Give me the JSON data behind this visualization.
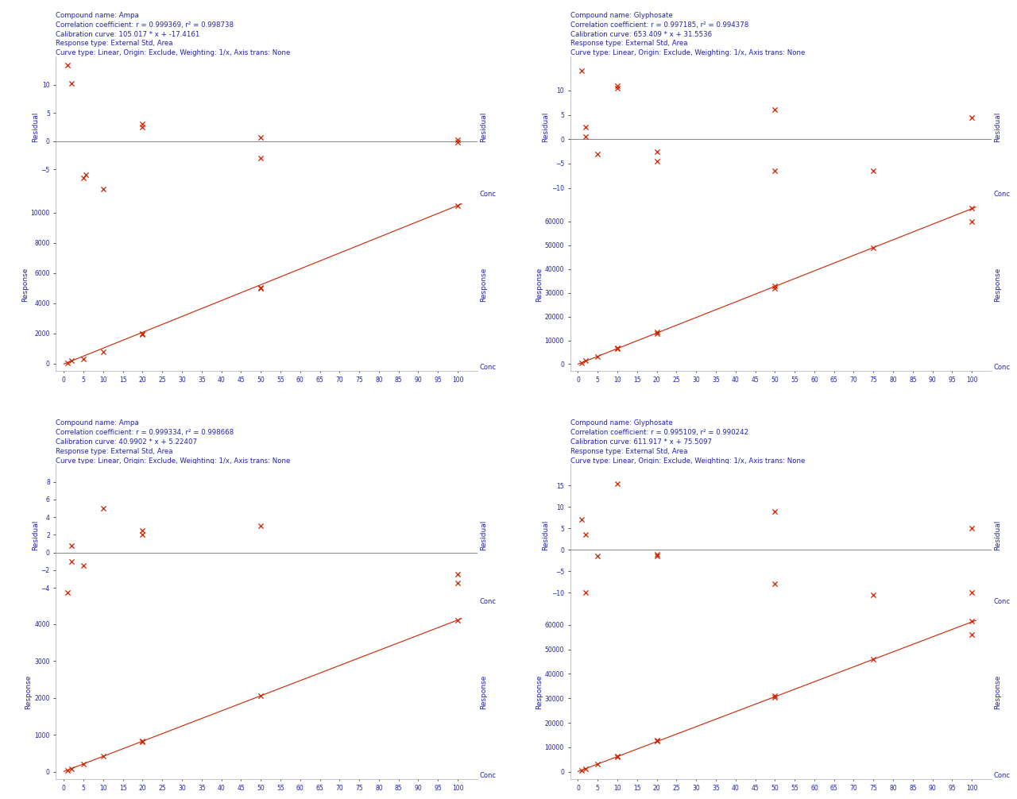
{
  "panels": [
    {
      "title_lines": [
        "Compound name: Ampa",
        "Correlation coefficient: r = 0.999369, r² = 0.998738",
        "Calibration curve: 105.017 * x + -17.4161",
        "Response type: External Std, Area",
        "Curve type: Linear, Origin: Exclude, Weighting: 1/x, Axis trans: None"
      ],
      "slope": 105.017,
      "intercept": -17.4161,
      "residual_points": [
        [
          1,
          13.5
        ],
        [
          2,
          10.2
        ],
        [
          5,
          -6.5
        ],
        [
          5.5,
          -6.0
        ],
        [
          10,
          -8.5
        ],
        [
          20,
          3.0
        ],
        [
          20,
          2.5
        ],
        [
          50,
          -3.0
        ],
        [
          50,
          0.6
        ],
        [
          100,
          0.3
        ],
        [
          100,
          -0.2
        ]
      ],
      "response_points": [
        [
          1,
          75
        ],
        [
          2,
          200
        ],
        [
          5,
          310
        ],
        [
          10,
          790
        ],
        [
          20,
          2020
        ],
        [
          20,
          1950
        ],
        [
          50,
          5050
        ],
        [
          50,
          5000
        ],
        [
          100,
          10450
        ]
      ],
      "residual_ylim": [
        -10,
        15
      ],
      "residual_yticks": [
        -5,
        0,
        5,
        10
      ],
      "response_ylim": [
        -500,
        11000
      ],
      "response_yticks": [
        0,
        2000,
        4000,
        6000,
        8000,
        10000
      ]
    },
    {
      "title_lines": [
        "Compound name: Glyphosate",
        "Correlation coefficient: r = 0.997185, r² = 0.994378",
        "Calibration curve: 653.409 * x + 31.5536",
        "Response type: External Std, Area",
        "Curve type: Linear, Origin: Exclude, Weighting: 1/x, Axis trans: None"
      ],
      "slope": 653.409,
      "intercept": 31.5536,
      "residual_points": [
        [
          1,
          14.0
        ],
        [
          2,
          2.5
        ],
        [
          2,
          0.5
        ],
        [
          5,
          -3.0
        ],
        [
          10,
          11.0
        ],
        [
          10,
          10.5
        ],
        [
          20,
          -2.5
        ],
        [
          20,
          -4.5
        ],
        [
          50,
          6.0
        ],
        [
          50,
          -6.5
        ],
        [
          75,
          -6.5
        ],
        [
          100,
          4.5
        ]
      ],
      "response_points": [
        [
          1,
          500
        ],
        [
          2,
          1400
        ],
        [
          5,
          3300
        ],
        [
          10,
          6500
        ],
        [
          10,
          6800
        ],
        [
          20,
          13000
        ],
        [
          20,
          13500
        ],
        [
          50,
          33000
        ],
        [
          50,
          32000
        ],
        [
          75,
          49000
        ],
        [
          100,
          65500
        ],
        [
          100,
          60000
        ]
      ],
      "residual_ylim": [
        -12,
        17
      ],
      "residual_yticks": [
        -10,
        -5,
        0,
        5,
        10
      ],
      "response_ylim": [
        -3000,
        70000
      ],
      "response_yticks": [
        0,
        10000,
        20000,
        30000,
        40000,
        50000,
        60000
      ]
    },
    {
      "title_lines": [
        "Compound name: Ampa",
        "Correlation coefficient: r = 0.999334, r² = 0.998668",
        "Calibration curve: 40.9902 * x + 5.22407",
        "Response type: External Std, Area",
        "Curve type: Linear, Origin: Exclude, Weighting: 1/x, Axis trans: None"
      ],
      "slope": 40.9902,
      "intercept": 5.22407,
      "residual_points": [
        [
          1,
          -4.5
        ],
        [
          2,
          0.8
        ],
        [
          2,
          -1.0
        ],
        [
          5,
          -1.5
        ],
        [
          10,
          5.0
        ],
        [
          20,
          2.5
        ],
        [
          20,
          2.0
        ],
        [
          50,
          3.0
        ],
        [
          100,
          -2.5
        ],
        [
          100,
          -3.5
        ]
      ],
      "response_points": [
        [
          1,
          40
        ],
        [
          2,
          85
        ],
        [
          5,
          200
        ],
        [
          10,
          420
        ],
        [
          20,
          830
        ],
        [
          20,
          800
        ],
        [
          50,
          2060
        ],
        [
          100,
          4100
        ]
      ],
      "residual_ylim": [
        -6,
        10
      ],
      "residual_yticks": [
        -4,
        -2,
        0,
        2,
        4,
        6,
        8
      ],
      "response_ylim": [
        -200,
        4500
      ],
      "response_yticks": [
        0,
        1000,
        2000,
        3000,
        4000
      ]
    },
    {
      "title_lines": [
        "Compound name: Glyphosate",
        "Correlation coefficient: r = 0.995109, r² = 0.990242",
        "Calibration curve: 611.917 * x + 75.5097",
        "Response type: External Std, Area",
        "Curve type: Linear, Origin: Exclude, Weighting: 1/x, Axis trans: None"
      ],
      "slope": 611.917,
      "intercept": 75.5097,
      "residual_points": [
        [
          1,
          7.0
        ],
        [
          2,
          3.5
        ],
        [
          2,
          -10.0
        ],
        [
          5,
          -1.5
        ],
        [
          10,
          15.5
        ],
        [
          20,
          -1.5
        ],
        [
          20,
          -1.0
        ],
        [
          50,
          -8.0
        ],
        [
          50,
          9.0
        ],
        [
          75,
          -10.5
        ],
        [
          100,
          5.0
        ],
        [
          100,
          -10.0
        ]
      ],
      "response_points": [
        [
          1,
          600
        ],
        [
          2,
          1300
        ],
        [
          5,
          3100
        ],
        [
          10,
          6200
        ],
        [
          10,
          6500
        ],
        [
          20,
          12500
        ],
        [
          20,
          12800
        ],
        [
          50,
          30500
        ],
        [
          50,
          31000
        ],
        [
          75,
          46000
        ],
        [
          100,
          61500
        ],
        [
          100,
          56000
        ]
      ],
      "residual_ylim": [
        -13,
        20
      ],
      "residual_yticks": [
        -10,
        -5,
        0,
        5,
        10,
        15
      ],
      "response_ylim": [
        -3000,
        68000
      ],
      "response_yticks": [
        0,
        10000,
        20000,
        30000,
        40000,
        50000,
        60000
      ]
    }
  ],
  "xlim": [
    -2,
    105
  ],
  "xticks": [
    0,
    5,
    10,
    15,
    20,
    25,
    30,
    35,
    40,
    45,
    50,
    55,
    60,
    65,
    70,
    75,
    80,
    85,
    90,
    95,
    100
  ],
  "text_color": "#2222aa",
  "marker_color": "#cc2200",
  "line_color": "#cc2200",
  "zero_line_color": "#888888",
  "bg_color": "#ffffff",
  "title_fontsize": 6.2,
  "axis_label_fontsize": 6.5,
  "tick_fontsize": 5.5
}
